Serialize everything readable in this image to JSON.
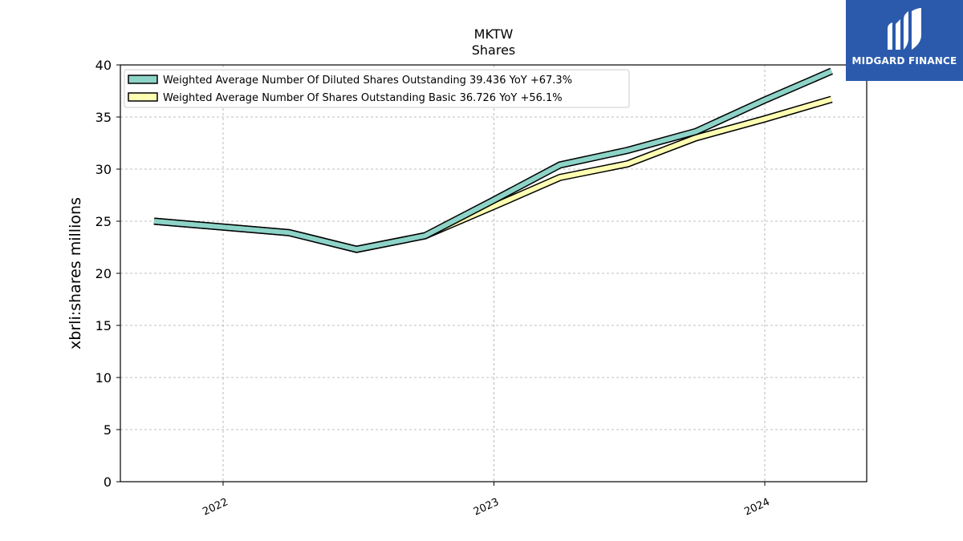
{
  "brand": {
    "name": "MIDGARD FINANCE",
    "accent": "#2b5aad"
  },
  "chart_data": {
    "type": "line",
    "title": "MKTW",
    "subtitle": "Shares",
    "ylabel": "xbrli:shares millions",
    "xlabel": "",
    "ylim": [
      0,
      40
    ],
    "yticks": [
      "0",
      "5",
      "10",
      "15",
      "20",
      "25",
      "30",
      "35",
      "40"
    ],
    "xticks": [
      "2022",
      "2023",
      "2024"
    ],
    "grid": true,
    "legend_position": "top-left",
    "series": [
      {
        "name": "Weighted Average Number Of Diluted Shares Outstanding  39.436 YoY +67.3%",
        "color": "#8dd3c7",
        "x": [
          "2021-09-30",
          "2022-03-31",
          "2022-06-30",
          "2022-09-30",
          "2022-12-31",
          "2023-03-31",
          "2023-06-30",
          "2023-09-30",
          "2023-12-31",
          "2024-03-31"
        ],
        "values": [
          25.0,
          23.9,
          22.3,
          23.6,
          27.0,
          30.4,
          31.8,
          33.6,
          36.6,
          39.4
        ]
      },
      {
        "name": "Weighted Average Number Of Shares Outstanding Basic  36.726 YoY +56.1%",
        "color": "#ffffb3",
        "x": [
          "2021-09-30",
          "2022-03-31",
          "2022-06-30",
          "2022-09-30",
          "2022-12-31",
          "2023-03-31",
          "2023-06-30",
          "2023-09-30",
          "2023-12-31",
          "2024-03-31"
        ],
        "values": [
          25.0,
          23.9,
          22.3,
          23.6,
          26.4,
          29.2,
          30.5,
          33.0,
          34.8,
          36.7
        ]
      }
    ]
  }
}
